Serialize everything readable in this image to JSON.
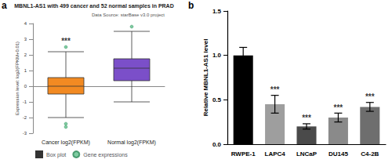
{
  "chart_data": [
    {
      "panel_label": "a",
      "type": "boxplot",
      "title": "MBNL1-AS1 with 499 cancer and 52 normal samples in PRAD",
      "subtitle": "Data Source: starBase v3.0 project",
      "y_label": "Expression level: log2(FPKM+0.01)",
      "categories": [
        "Cancer log2(FPKM)",
        "Normal log2(FPKM)"
      ],
      "series": [
        {
          "name": "Box plot",
          "type": "boxplot",
          "colors": [
            "#f28a22",
            "#7b4fc9"
          ],
          "values": [
            [
              -2.0,
              -0.5,
              0.0,
              0.55,
              2.2
            ],
            [
              -1.0,
              0.35,
              1.15,
              1.75,
              3.5
            ]
          ]
        },
        {
          "name": "Gene expressions",
          "type": "scatter",
          "color": "#5fbf8a",
          "marker": "circle",
          "values": [
            [
              2.5,
              -2.4,
              -2.6
            ],
            [
              3.8
            ]
          ]
        }
      ],
      "ylim": [
        -3,
        4
      ],
      "yticks": [
        -3,
        -2,
        -1,
        0,
        1,
        2,
        3,
        4
      ],
      "grid": false,
      "legend": "bottom",
      "annotations": [
        {
          "category": "Cancer log2(FPKM)",
          "text": "***"
        }
      ]
    },
    {
      "panel_label": "b",
      "type": "bar",
      "y_label": "Relative MBNL1-AS1 level",
      "categories": [
        "RWPE-1",
        "LAPC4",
        "LNCaP",
        "DU145",
        "C4-2B"
      ],
      "values": [
        1.0,
        0.45,
        0.2,
        0.3,
        0.42
      ],
      "errors": [
        0.09,
        0.1,
        0.03,
        0.05,
        0.05
      ],
      "colors": [
        "#000000",
        "#9e9e9e",
        "#4a4a4a",
        "#8a8a8a",
        "#6e6e6e"
      ],
      "ylim": [
        0,
        1.5
      ],
      "yticks": [
        {
          "value": 0,
          "label": "0.0"
        },
        {
          "value": 0.5,
          "label": "0.5"
        },
        {
          "value": 1.0,
          "label": "1.0"
        },
        {
          "value": 1.5,
          "label": "1.5"
        }
      ],
      "grid": false,
      "annotations": [
        {
          "category": "LAPC4",
          "text": "***"
        },
        {
          "category": "LNCaP",
          "text": "***"
        },
        {
          "category": "DU145",
          "text": "***"
        },
        {
          "category": "C4-2B",
          "text": "***"
        }
      ]
    }
  ]
}
